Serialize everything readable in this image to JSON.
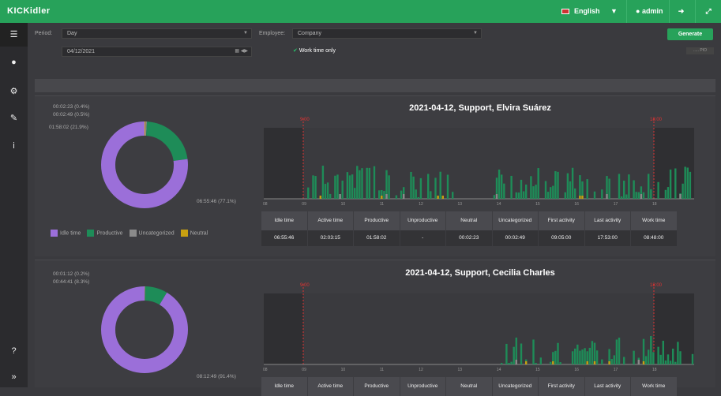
{
  "app": {
    "logo": "KICKidler"
  },
  "topbar": {
    "language": "English",
    "user": "admin",
    "colors": {
      "bar": "#27a25a"
    }
  },
  "filter": {
    "period_label": "Period:",
    "period_value": "Day",
    "date_value": "04/12/2021",
    "employee_label": "Employee:",
    "employee_value": "Company",
    "work_time_only": "Work time only",
    "generate": "Generate",
    "tiny_button": "..... PIO"
  },
  "legend": [
    {
      "label": "Idle time",
      "color": "#9b6fd9"
    },
    {
      "label": "Productive",
      "color": "#1e8c58"
    },
    {
      "label": "Uncategorized",
      "color": "#8a8a8a"
    },
    {
      "label": "Neutral",
      "color": "#c8a010"
    }
  ],
  "stat_headers": [
    "Idle time",
    "Active time",
    "Productive",
    "Unproductive",
    "Neutral",
    "Uncategorized",
    "First activity",
    "Last activity",
    "Work time"
  ],
  "timeline_hours": [
    "08",
    "09",
    "10",
    "11",
    "12",
    "13",
    "14",
    "15",
    "16",
    "17",
    "18"
  ],
  "work_start": "9:00",
  "work_end": "18:00",
  "reports": [
    {
      "title": "2021-04-12, Support,  Elvira Suárez",
      "donut": {
        "idle": 77.1,
        "productive": 21.9,
        "uncategorized": 0.5,
        "neutral": 0.4
      },
      "labels": [
        "00:02:23 (0.4%)",
        "00:02:49 (0.5%)",
        "01:58:02 (21.9%)",
        "06:55:46 (77.1%)"
      ],
      "stats": [
        "06:55:46",
        "02:03:15",
        "01:58:02",
        "-",
        "00:02:23",
        "00:02:49",
        "09:05:00",
        "17:53:00",
        "08:48:00"
      ]
    },
    {
      "title": "2021-04-12, Support,  Cecilia Charles",
      "donut": {
        "idle": 91.4,
        "productive": 8.3,
        "uncategorized": 0.2,
        "neutral": 0.1
      },
      "labels": [
        "00:01:12 (0.2%)",
        "00:44:41 (8.3%)",
        "08:12:49 (91.4%)"
      ],
      "stats": [
        "Idle time",
        "Active time",
        "Productive",
        "Unproductive",
        "Neutral",
        "Uncategorized",
        "First activity",
        "Last activity",
        "Work time"
      ]
    }
  ]
}
